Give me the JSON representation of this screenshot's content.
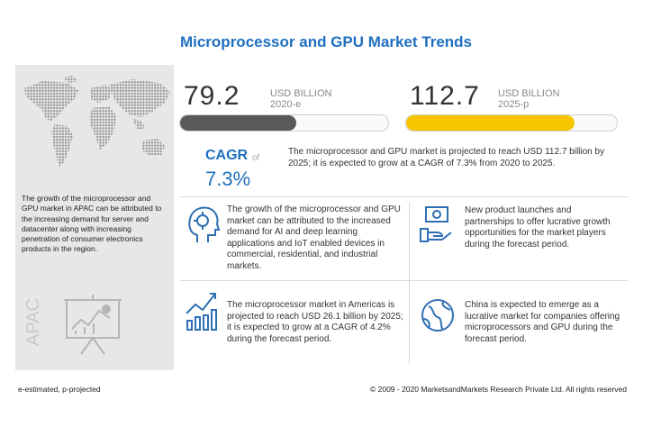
{
  "title": "Microprocessor and GPU Market Trends",
  "market_2020": {
    "value": "79.2",
    "unit": "USD BILLION",
    "period": "2020-e",
    "fill": 0.56,
    "color": "#595959"
  },
  "market_2025": {
    "value": "112.7",
    "unit": "USD BILLION",
    "period": "2025-p",
    "fill": 0.8,
    "color": "#f7c600"
  },
  "cagr": {
    "label": "CAGR",
    "of": "of",
    "value": "7.3%",
    "text": "The microprocessor and GPU market is projected to reach USD 112.7 billion by 2025; it is expected to grow at a CAGR of 7.3% from 2020 to 2025."
  },
  "region": {
    "label": "APAC",
    "text": "The growth of the microprocessor and GPU market in APAC can be attributed to the increasing demand for server and datacenter along with increasing penetration of consumer electronics products in the region."
  },
  "points": [
    {
      "icon": "ai-head-icon",
      "text": "The growth of the microprocessor and GPU market can be attributed to the increased demand for AI and deep learning applications and IoT enabled devices in commercial, residential, and industrial markets."
    },
    {
      "icon": "money-hand-icon",
      "text": "New product launches and partnerships to offer lucrative growth opportunities for the market players during the forecast period."
    },
    {
      "icon": "growth-chart-icon",
      "text": "The microprocessor market in Americas is projected to reach USD 26.1 billion by 2025; it is expected to grow at a CAGR of 4.2% during the forecast period."
    },
    {
      "icon": "globe-icon",
      "text": "China is expected to emerge as a lucrative market for companies offering microprocessors and GPU during the forecast period."
    }
  ],
  "footer": {
    "left": "e-estimated, p-projected",
    "right": "© 2009 - 2020 MarketsandMarkets Research Private Ltd. All rights reserved"
  }
}
